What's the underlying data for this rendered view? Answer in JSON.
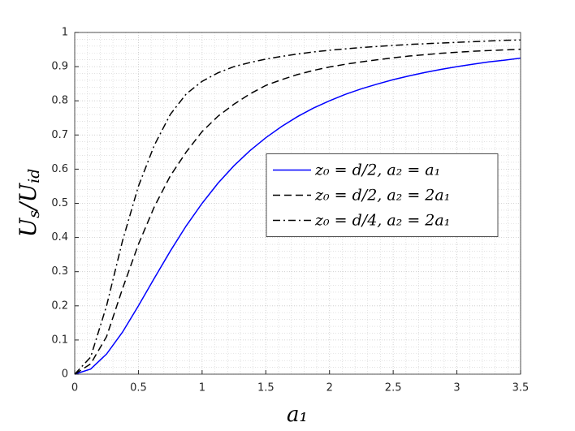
{
  "chart_data": {
    "type": "line",
    "xlabel": "a₁",
    "ylabel": [
      "U",
      "s",
      "/U",
      "id"
    ],
    "x": [
      0,
      0.125,
      0.25,
      0.375,
      0.5,
      0.625,
      0.75,
      0.875,
      1,
      1.125,
      1.25,
      1.375,
      1.5,
      1.625,
      1.75,
      1.875,
      2,
      2.125,
      2.25,
      2.375,
      2.5,
      2.625,
      2.75,
      2.875,
      3,
      3.125,
      3.25,
      3.375,
      3.5
    ],
    "series": [
      {
        "name": "z₀ = d/2, a₂ = a₁",
        "color": "#0000ff",
        "dash": "solid",
        "values": [
          0,
          0.015,
          0.059,
          0.123,
          0.2,
          0.281,
          0.36,
          0.434,
          0.5,
          0.559,
          0.61,
          0.654,
          0.692,
          0.725,
          0.754,
          0.779,
          0.8,
          0.819,
          0.835,
          0.849,
          0.862,
          0.873,
          0.883,
          0.892,
          0.9,
          0.907,
          0.914,
          0.919,
          0.925
        ]
      },
      {
        "name": "z₀ = d/2, a₂ = 2a₁",
        "color": "#000000",
        "dash": "dashed",
        "values": [
          0,
          0.03,
          0.11,
          0.25,
          0.38,
          0.49,
          0.58,
          0.65,
          0.71,
          0.755,
          0.79,
          0.82,
          0.845,
          0.862,
          0.877,
          0.889,
          0.899,
          0.907,
          0.914,
          0.92,
          0.926,
          0.931,
          0.935,
          0.939,
          0.942,
          0.945,
          0.947,
          0.949,
          0.951
        ]
      },
      {
        "name": "z₀ = d/4, a₂ = 2a₁",
        "color": "#000000",
        "dash": "dashdot",
        "values": [
          0,
          0.05,
          0.2,
          0.39,
          0.55,
          0.67,
          0.76,
          0.82,
          0.857,
          0.882,
          0.9,
          0.912,
          0.922,
          0.93,
          0.937,
          0.943,
          0.948,
          0.952,
          0.956,
          0.959,
          0.962,
          0.965,
          0.967,
          0.969,
          0.971,
          0.973,
          0.975,
          0.977,
          0.978
        ]
      }
    ],
    "xlim": [
      0,
      3.5
    ],
    "xticks": [
      0,
      0.5,
      1,
      1.5,
      2,
      2.5,
      3,
      3.5
    ],
    "ylim": [
      0,
      1
    ],
    "yticks": [
      0,
      0.1,
      0.2,
      0.3,
      0.4,
      0.5,
      0.6,
      0.7,
      0.8,
      0.9,
      1
    ],
    "grid": true,
    "minor_grid": true,
    "legend_loc": "east"
  }
}
